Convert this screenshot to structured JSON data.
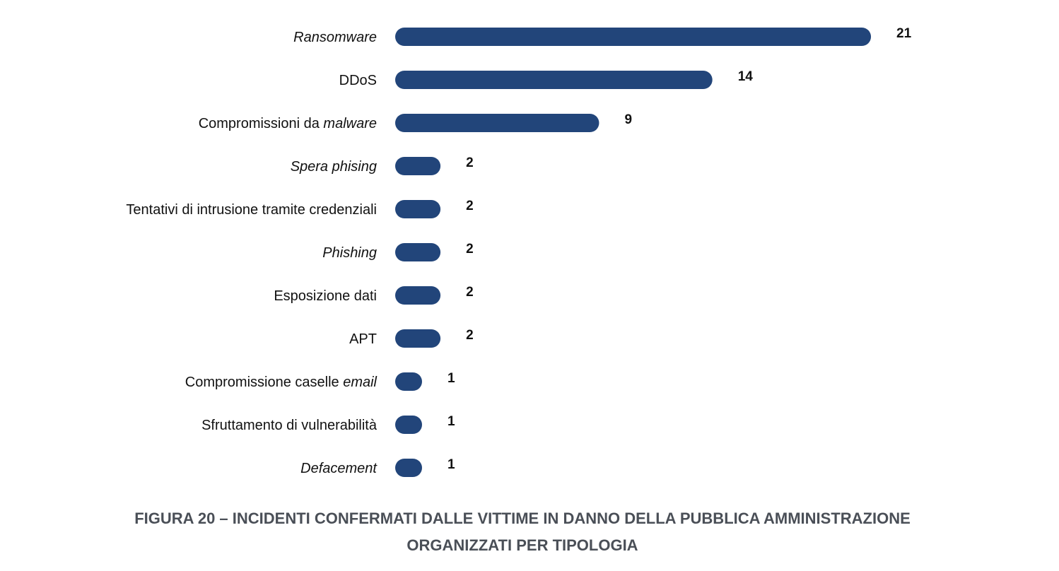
{
  "chart_data": {
    "type": "bar",
    "orientation": "horizontal",
    "categories": [
      "Ransomware",
      "DDoS",
      "Compromissioni da malware",
      "Spera phising",
      "Tentativi di intrusione tramite credenziali",
      "Phishing",
      "Esposizione dati",
      "APT",
      "Compromissione caselle email",
      "Sfruttamento di vulnerabilità",
      "Defacement"
    ],
    "category_labels": [
      [
        {
          "text": "Ransomware",
          "italic": true
        }
      ],
      [
        {
          "text": "DDoS",
          "italic": false
        }
      ],
      [
        {
          "text": "Compromissioni da ",
          "italic": false
        },
        {
          "text": "malware",
          "italic": true
        }
      ],
      [
        {
          "text": "Spera phising",
          "italic": true
        }
      ],
      [
        {
          "text": "Tentativi di intrusione tramite credenziali",
          "italic": false
        }
      ],
      [
        {
          "text": "Phishing",
          "italic": true
        }
      ],
      [
        {
          "text": "Esposizione dati",
          "italic": false
        }
      ],
      [
        {
          "text": "APT",
          "italic": false
        }
      ],
      [
        {
          "text": "Compromissione caselle ",
          "italic": false
        },
        {
          "text": "email",
          "italic": true
        }
      ],
      [
        {
          "text": "Sfruttamento di vulnerabilità",
          "italic": false
        }
      ],
      [
        {
          "text": "Defacement",
          "italic": true
        }
      ]
    ],
    "values": [
      21,
      14,
      9,
      2,
      2,
      2,
      2,
      2,
      1,
      1,
      1
    ],
    "value_labels": [
      "21",
      "14",
      "9",
      "2",
      "2",
      "2",
      "2",
      "2",
      "1",
      "1",
      "1"
    ],
    "bar_color": "#22457a",
    "grid": false,
    "legend": "none"
  },
  "caption": {
    "line1": "FIGURA 20 – INCIDENTI CONFERMATI DALLE VITTIME IN DANNO DELLA PUBBLICA AMMINISTRAZIONE",
    "line2": "ORGANIZZATI PER TIPOLOGIA"
  }
}
